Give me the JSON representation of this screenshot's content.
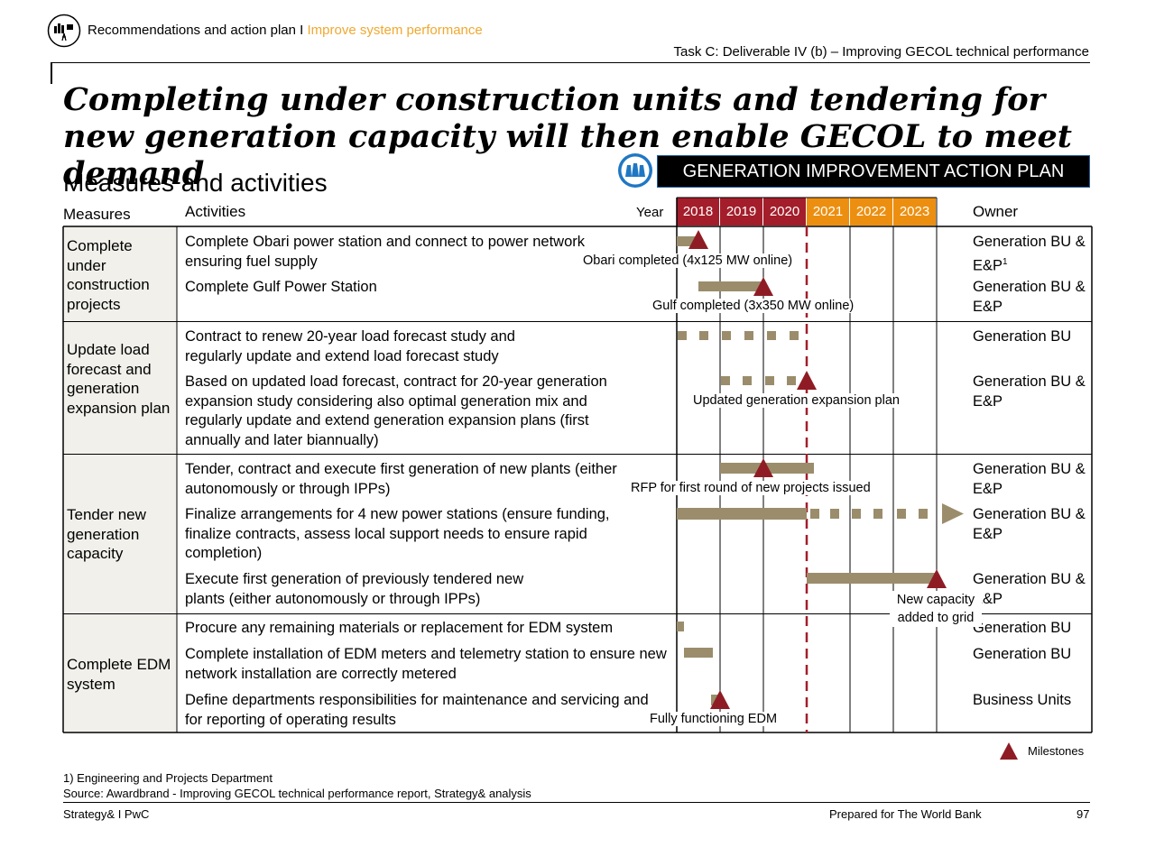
{
  "header": {
    "breadcrumb": "Recommendations and action plan I ",
    "breadcrumb_accent": "Improve system performance",
    "task": "Task C: Deliverable IV (b) – Improving GECOL technical performance",
    "accent_color": "#f0a830"
  },
  "title": "Completing under construction units and tendering for new generation capacity will then enable GECOL to meet demand",
  "subtitle": "Measures and activities",
  "banner": "GENERATION IMPROVEMENT ACTION PLAN",
  "columns": {
    "measures": "Measures",
    "activities": "Activities",
    "year": "Year",
    "owner": "Owner"
  },
  "years": [
    {
      "label": "2018",
      "color": "#a31d2a"
    },
    {
      "label": "2019",
      "color": "#a31d2a"
    },
    {
      "label": "2020",
      "color": "#a31d2a"
    },
    {
      "label": "2021",
      "color": "#ec8f10"
    },
    {
      "label": "2022",
      "color": "#ec8f10"
    },
    {
      "label": "2023",
      "color": "#ec8f10"
    }
  ],
  "measures": [
    "Complete under construction projects",
    "Update load forecast and generation expansion plan",
    "Tender new generation capacity",
    "Complete EDM system"
  ],
  "activities": [
    {
      "text": "Complete Obari power station and connect to power network ensuring fuel supply",
      "owner": "Generation BU & E&P",
      "owner_sup": "1"
    },
    {
      "text": "Complete Gulf Power Station",
      "owner": "Generation BU & E&P",
      "owner_sup": ""
    },
    {
      "text": "Contract to renew 20-year load forecast study and regularly update and extend load forecast study",
      "owner": "Generation BU",
      "owner_sup": ""
    },
    {
      "text": "Based on updated load forecast, contract for 20-year generation expansion study considering also optimal generation mix and regularly update and extend generation  expansion plans (first annually and later biannually)",
      "owner": "Generation BU & E&P",
      "owner_sup": ""
    },
    {
      "text": "Tender, contract and execute first generation of new plants (either autonomously or through IPPs)",
      "owner": "Generation BU & E&P",
      "owner_sup": ""
    },
    {
      "text": "Finalize arrangements for 4 new power stations (ensure funding, finalize contracts, assess local support needs to ensure rapid completion)",
      "owner": "Generation BU & E&P",
      "owner_sup": ""
    },
    {
      "text": "Execute first generation of previously tendered new plants (either autonomously or through IPPs)",
      "owner": "Generation BU & E&P",
      "owner_sup": ""
    },
    {
      "text": "Procure any remaining materials or replacement for EDM system",
      "owner": "Generation BU",
      "owner_sup": ""
    },
    {
      "text": "Complete installation of EDM meters and telemetry station to ensure new network installation are correctly metered",
      "owner": "Generation BU",
      "owner_sup": ""
    },
    {
      "text": "Define departments responsibilities for maintenance and servicing and for reporting of operating results",
      "owner": "Business Units",
      "owner_sup": ""
    }
  ],
  "milestones": [
    "Obari completed (4x125 MW online)",
    "Gulf completed (3x350 MW online)",
    "Updated generation expansion plan",
    "RFP for first round of new projects issued",
    "New capacity added to grid",
    "Fully functioning EDM"
  ],
  "legend": {
    "milestones": "Milestones"
  },
  "colors": {
    "bar": "#9b8d6c",
    "milestone": "#8f1c24",
    "today_line": "#a31d2a"
  },
  "footnote": "1) Engineering and Projects Department",
  "source": "Source: Awardbrand - Improving GECOL technical performance report, Strategy& analysis",
  "footer": {
    "left": "Strategy& I PwC",
    "center": "Prepared for The World Bank",
    "page": "97"
  }
}
